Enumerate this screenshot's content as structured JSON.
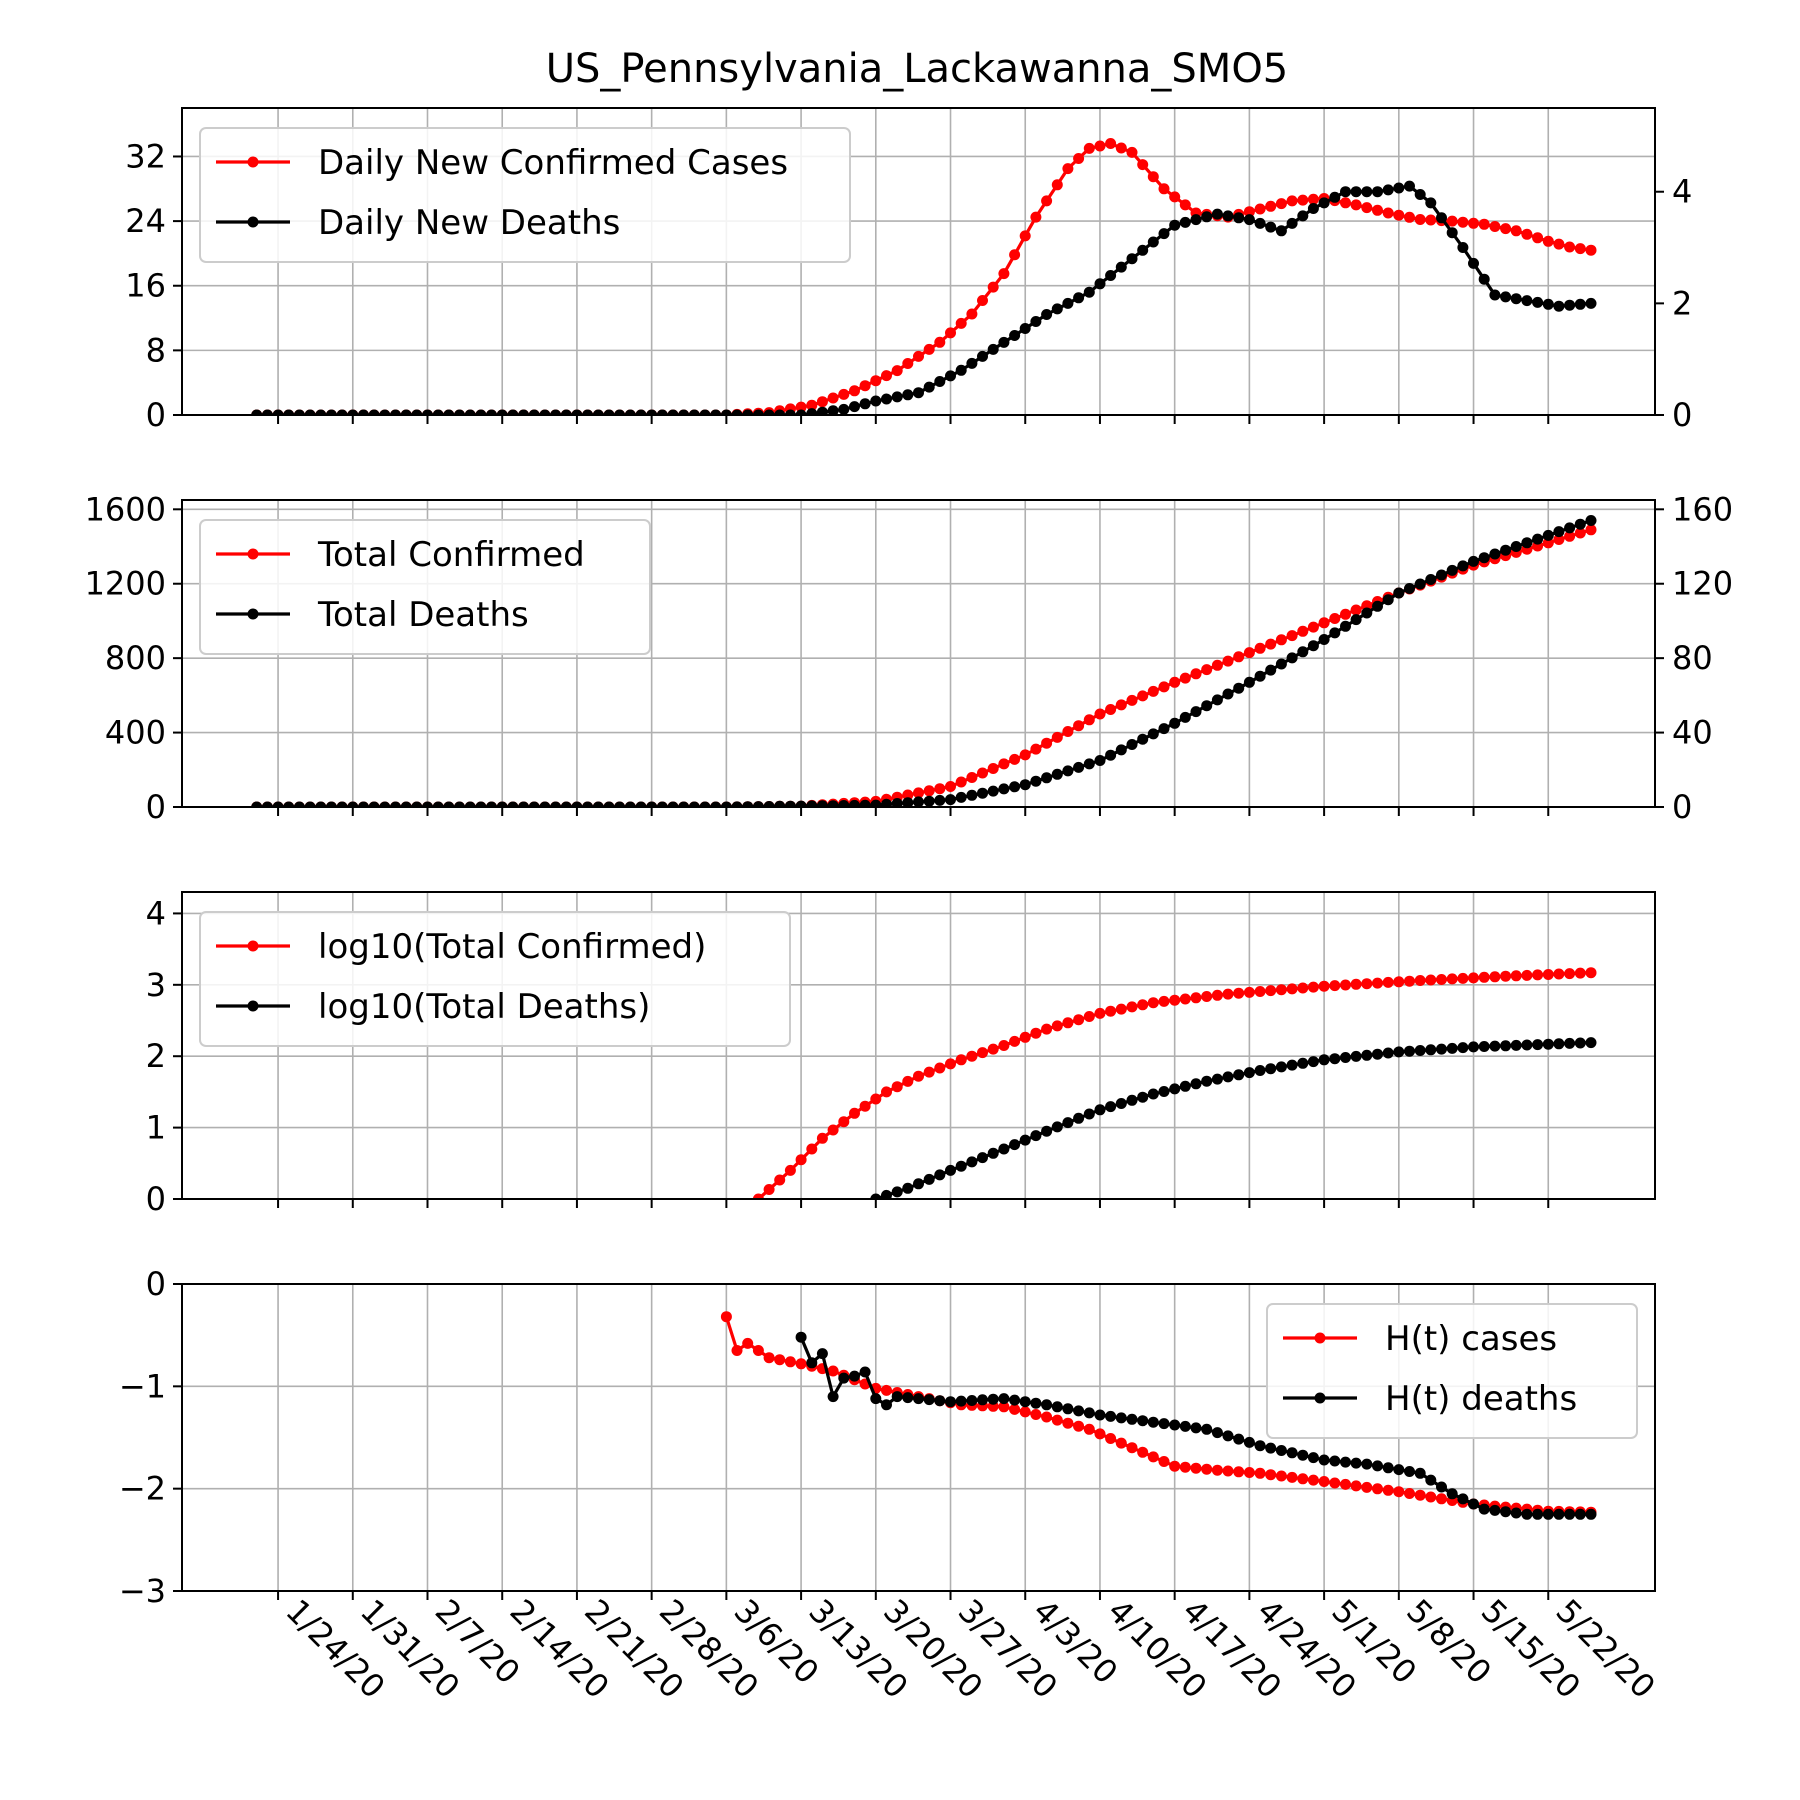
{
  "figure": {
    "title": "US_Pennsylvania_Lackawanna_SMO5"
  },
  "colors": {
    "cases": "#ff0000",
    "deaths": "#000000"
  },
  "x_ticks": [
    "1/24/20",
    "1/31/20",
    "2/7/20",
    "2/14/20",
    "2/21/20",
    "2/28/20",
    "3/6/20",
    "3/13/20",
    "3/20/20",
    "3/27/20",
    "4/3/20",
    "4/10/20",
    "4/17/20",
    "4/24/20",
    "5/1/20",
    "5/8/20",
    "5/15/20",
    "5/22/20"
  ],
  "chart_data": [
    {
      "type": "line",
      "title": "US_Pennsylvania_Lackawanna_SMO5",
      "x_start": "1/22/20",
      "x_end": "5/26/20",
      "ylim": [
        0,
        38
      ],
      "yticks": [
        0,
        8,
        16,
        24,
        32
      ],
      "y2lim": [
        0,
        5.5
      ],
      "y2ticks": [
        0,
        2,
        4
      ],
      "grid": true,
      "legend": "top-left",
      "series": [
        {
          "name": "Daily New Confirmed Cases",
          "axis": "left",
          "color": "#ff0000",
          "points": [
            [
              "1/22/20",
              0
            ],
            [
              "3/6/20",
              0
            ],
            [
              "3/10/20",
              0.3
            ],
            [
              "3/14/20",
              1.2
            ],
            [
              "3/18/20",
              3
            ],
            [
              "3/22/20",
              5.5
            ],
            [
              "3/26/20",
              9
            ],
            [
              "3/29/20",
              12.5
            ],
            [
              "4/1/20",
              17.5
            ],
            [
              "4/4/20",
              24.5
            ],
            [
              "4/7/20",
              30.5
            ],
            [
              "4/9/20",
              33
            ],
            [
              "4/11/20",
              33.6
            ],
            [
              "4/13/20",
              32.5
            ],
            [
              "4/16/20",
              28
            ],
            [
              "4/19/20",
              25
            ],
            [
              "4/22/20",
              24.5
            ],
            [
              "4/25/20",
              25.5
            ],
            [
              "4/28/20",
              26.5
            ],
            [
              "5/1/20",
              26.8
            ],
            [
              "5/4/20",
              26
            ],
            [
              "5/7/20",
              25
            ],
            [
              "5/10/20",
              24.2
            ],
            [
              "5/13/20",
              24
            ],
            [
              "5/16/20",
              23.6
            ],
            [
              "5/19/20",
              22.8
            ],
            [
              "5/22/20",
              21.5
            ],
            [
              "5/24/20",
              20.8
            ],
            [
              "5/26/20",
              20.4
            ]
          ]
        },
        {
          "name": "Daily New Deaths",
          "axis": "right",
          "color": "#000000",
          "points": [
            [
              "1/22/20",
              0
            ],
            [
              "3/13/20",
              0
            ],
            [
              "3/17/20",
              0.1
            ],
            [
              "3/20/20",
              0.25
            ],
            [
              "3/24/20",
              0.4
            ],
            [
              "3/28/20",
              0.8
            ],
            [
              "4/1/20",
              1.3
            ],
            [
              "4/5/20",
              1.8
            ],
            [
              "4/9/20",
              2.2
            ],
            [
              "4/13/20",
              2.8
            ],
            [
              "4/17/20",
              3.4
            ],
            [
              "4/21/20",
              3.6
            ],
            [
              "4/24/20",
              3.5
            ],
            [
              "4/27/20",
              3.3
            ],
            [
              "4/30/20",
              3.7
            ],
            [
              "5/3/20",
              4
            ],
            [
              "5/6/20",
              4
            ],
            [
              "5/9/20",
              4.1
            ],
            [
              "5/11/20",
              3.8
            ],
            [
              "5/14/20",
              3
            ],
            [
              "5/17/20",
              2.15
            ],
            [
              "5/20/20",
              2.05
            ],
            [
              "5/23/20",
              1.95
            ],
            [
              "5/26/20",
              2
            ]
          ]
        }
      ]
    },
    {
      "type": "line",
      "x_start": "1/22/20",
      "x_end": "5/26/20",
      "ylim": [
        0,
        1650
      ],
      "yticks": [
        0,
        400,
        800,
        1200,
        1600
      ],
      "y2lim": [
        0,
        165
      ],
      "y2ticks": [
        0,
        40,
        80,
        120,
        160
      ],
      "grid": true,
      "legend": "top-left",
      "series": [
        {
          "name": "Total Confirmed",
          "axis": "left",
          "color": "#ff0000",
          "points": [
            [
              "1/22/20",
              0
            ],
            [
              "3/6/20",
              0
            ],
            [
              "3/13/20",
              5
            ],
            [
              "3/20/20",
              30
            ],
            [
              "3/27/20",
              110
            ],
            [
              "4/3/20",
              280
            ],
            [
              "4/10/20",
              500
            ],
            [
              "4/17/20",
              670
            ],
            [
              "4/24/20",
              830
            ],
            [
              "5/1/20",
              990
            ],
            [
              "5/8/20",
              1150
            ],
            [
              "5/15/20",
              1300
            ],
            [
              "5/22/20",
              1420
            ],
            [
              "5/26/20",
              1490
            ]
          ]
        },
        {
          "name": "Total Deaths",
          "axis": "right",
          "color": "#000000",
          "points": [
            [
              "1/22/20",
              0
            ],
            [
              "3/6/20",
              0
            ],
            [
              "3/20/20",
              1
            ],
            [
              "3/27/20",
              4
            ],
            [
              "4/3/20",
              12
            ],
            [
              "4/10/20",
              25
            ],
            [
              "4/17/20",
              45
            ],
            [
              "4/24/20",
              67
            ],
            [
              "5/1/20",
              90
            ],
            [
              "5/8/20",
              115
            ],
            [
              "5/15/20",
              132
            ],
            [
              "5/22/20",
              146
            ],
            [
              "5/26/20",
              154
            ]
          ]
        }
      ]
    },
    {
      "type": "line",
      "x_start": "1/22/20",
      "x_end": "5/26/20",
      "ylim": [
        0,
        4.3
      ],
      "yticks": [
        0,
        1,
        2,
        3,
        4
      ],
      "grid": true,
      "legend": "top-left",
      "series": [
        {
          "name": "log10(Total Confirmed)",
          "axis": "left",
          "color": "#ff0000",
          "points": [
            [
              "3/9/20",
              0
            ],
            [
              "3/12/20",
              0.4
            ],
            [
              "3/15/20",
              0.85
            ],
            [
              "3/18/20",
              1.2
            ],
            [
              "3/21/20",
              1.5
            ],
            [
              "3/24/20",
              1.72
            ],
            [
              "3/28/20",
              1.95
            ],
            [
              "4/1/20",
              2.15
            ],
            [
              "4/5/20",
              2.38
            ],
            [
              "4/10/20",
              2.6
            ],
            [
              "4/15/20",
              2.75
            ],
            [
              "4/22/20",
              2.87
            ],
            [
              "5/1/20",
              2.98
            ],
            [
              "5/10/20",
              3.06
            ],
            [
              "5/18/20",
              3.12
            ],
            [
              "5/26/20",
              3.17
            ]
          ]
        },
        {
          "name": "log10(Total Deaths)",
          "axis": "left",
          "color": "#000000",
          "points": [
            [
              "3/20/20",
              0
            ],
            [
              "3/23/20",
              0.15
            ],
            [
              "3/27/20",
              0.4
            ],
            [
              "4/1/20",
              0.7
            ],
            [
              "4/5/20",
              0.95
            ],
            [
              "4/10/20",
              1.25
            ],
            [
              "4/15/20",
              1.47
            ],
            [
              "4/20/20",
              1.65
            ],
            [
              "4/25/20",
              1.8
            ],
            [
              "5/1/20",
              1.95
            ],
            [
              "5/8/20",
              2.06
            ],
            [
              "5/15/20",
              2.13
            ],
            [
              "5/26/20",
              2.19
            ]
          ]
        }
      ]
    },
    {
      "type": "line",
      "x_start": "1/22/20",
      "x_end": "5/26/20",
      "ylim": [
        -3,
        0
      ],
      "yticks": [
        -3,
        -2,
        -1,
        0
      ],
      "grid": true,
      "legend": "top-right",
      "series": [
        {
          "name": "H(t) cases",
          "axis": "left",
          "color": "#ff0000",
          "points": [
            [
              "3/6/20",
              -0.32
            ],
            [
              "3/7/20",
              -0.65
            ],
            [
              "3/8/20",
              -0.58
            ],
            [
              "3/10/20",
              -0.72
            ],
            [
              "3/13/20",
              -0.78
            ],
            [
              "3/16/20",
              -0.85
            ],
            [
              "3/20/20",
              -1.02
            ],
            [
              "3/24/20",
              -1.1
            ],
            [
              "3/28/20",
              -1.18
            ],
            [
              "4/1/20",
              -1.2
            ],
            [
              "4/5/20",
              -1.3
            ],
            [
              "4/9/20",
              -1.42
            ],
            [
              "4/13/20",
              -1.6
            ],
            [
              "4/17/20",
              -1.78
            ],
            [
              "4/21/20",
              -1.82
            ],
            [
              "4/25/20",
              -1.85
            ],
            [
              "5/1/20",
              -1.93
            ],
            [
              "5/8/20",
              -2.03
            ],
            [
              "5/15/20",
              -2.15
            ],
            [
              "5/22/20",
              -2.22
            ],
            [
              "5/26/20",
              -2.23
            ]
          ]
        },
        {
          "name": "H(t) deaths",
          "axis": "left",
          "color": "#000000",
          "points": [
            [
              "3/13/20",
              -0.52
            ],
            [
              "3/14/20",
              -0.77
            ],
            [
              "3/15/20",
              -0.68
            ],
            [
              "3/16/20",
              -1.1
            ],
            [
              "3/17/20",
              -0.92
            ],
            [
              "3/18/20",
              -0.9
            ],
            [
              "3/19/20",
              -0.86
            ],
            [
              "3/20/20",
              -1.12
            ],
            [
              "3/21/20",
              -1.18
            ],
            [
              "3/22/20",
              -1.1
            ],
            [
              "3/24/20",
              -1.12
            ],
            [
              "3/27/20",
              -1.15
            ],
            [
              "4/1/20",
              -1.12
            ],
            [
              "4/5/20",
              -1.18
            ],
            [
              "4/10/20",
              -1.28
            ],
            [
              "4/15/20",
              -1.35
            ],
            [
              "4/20/20",
              -1.42
            ],
            [
              "4/25/20",
              -1.58
            ],
            [
              "5/1/20",
              -1.72
            ],
            [
              "5/5/20",
              -1.76
            ],
            [
              "5/10/20",
              -1.85
            ],
            [
              "5/13/20",
              -2.05
            ],
            [
              "5/16/20",
              -2.2
            ],
            [
              "5/20/20",
              -2.25
            ],
            [
              "5/26/20",
              -2.25
            ]
          ]
        }
      ]
    }
  ]
}
